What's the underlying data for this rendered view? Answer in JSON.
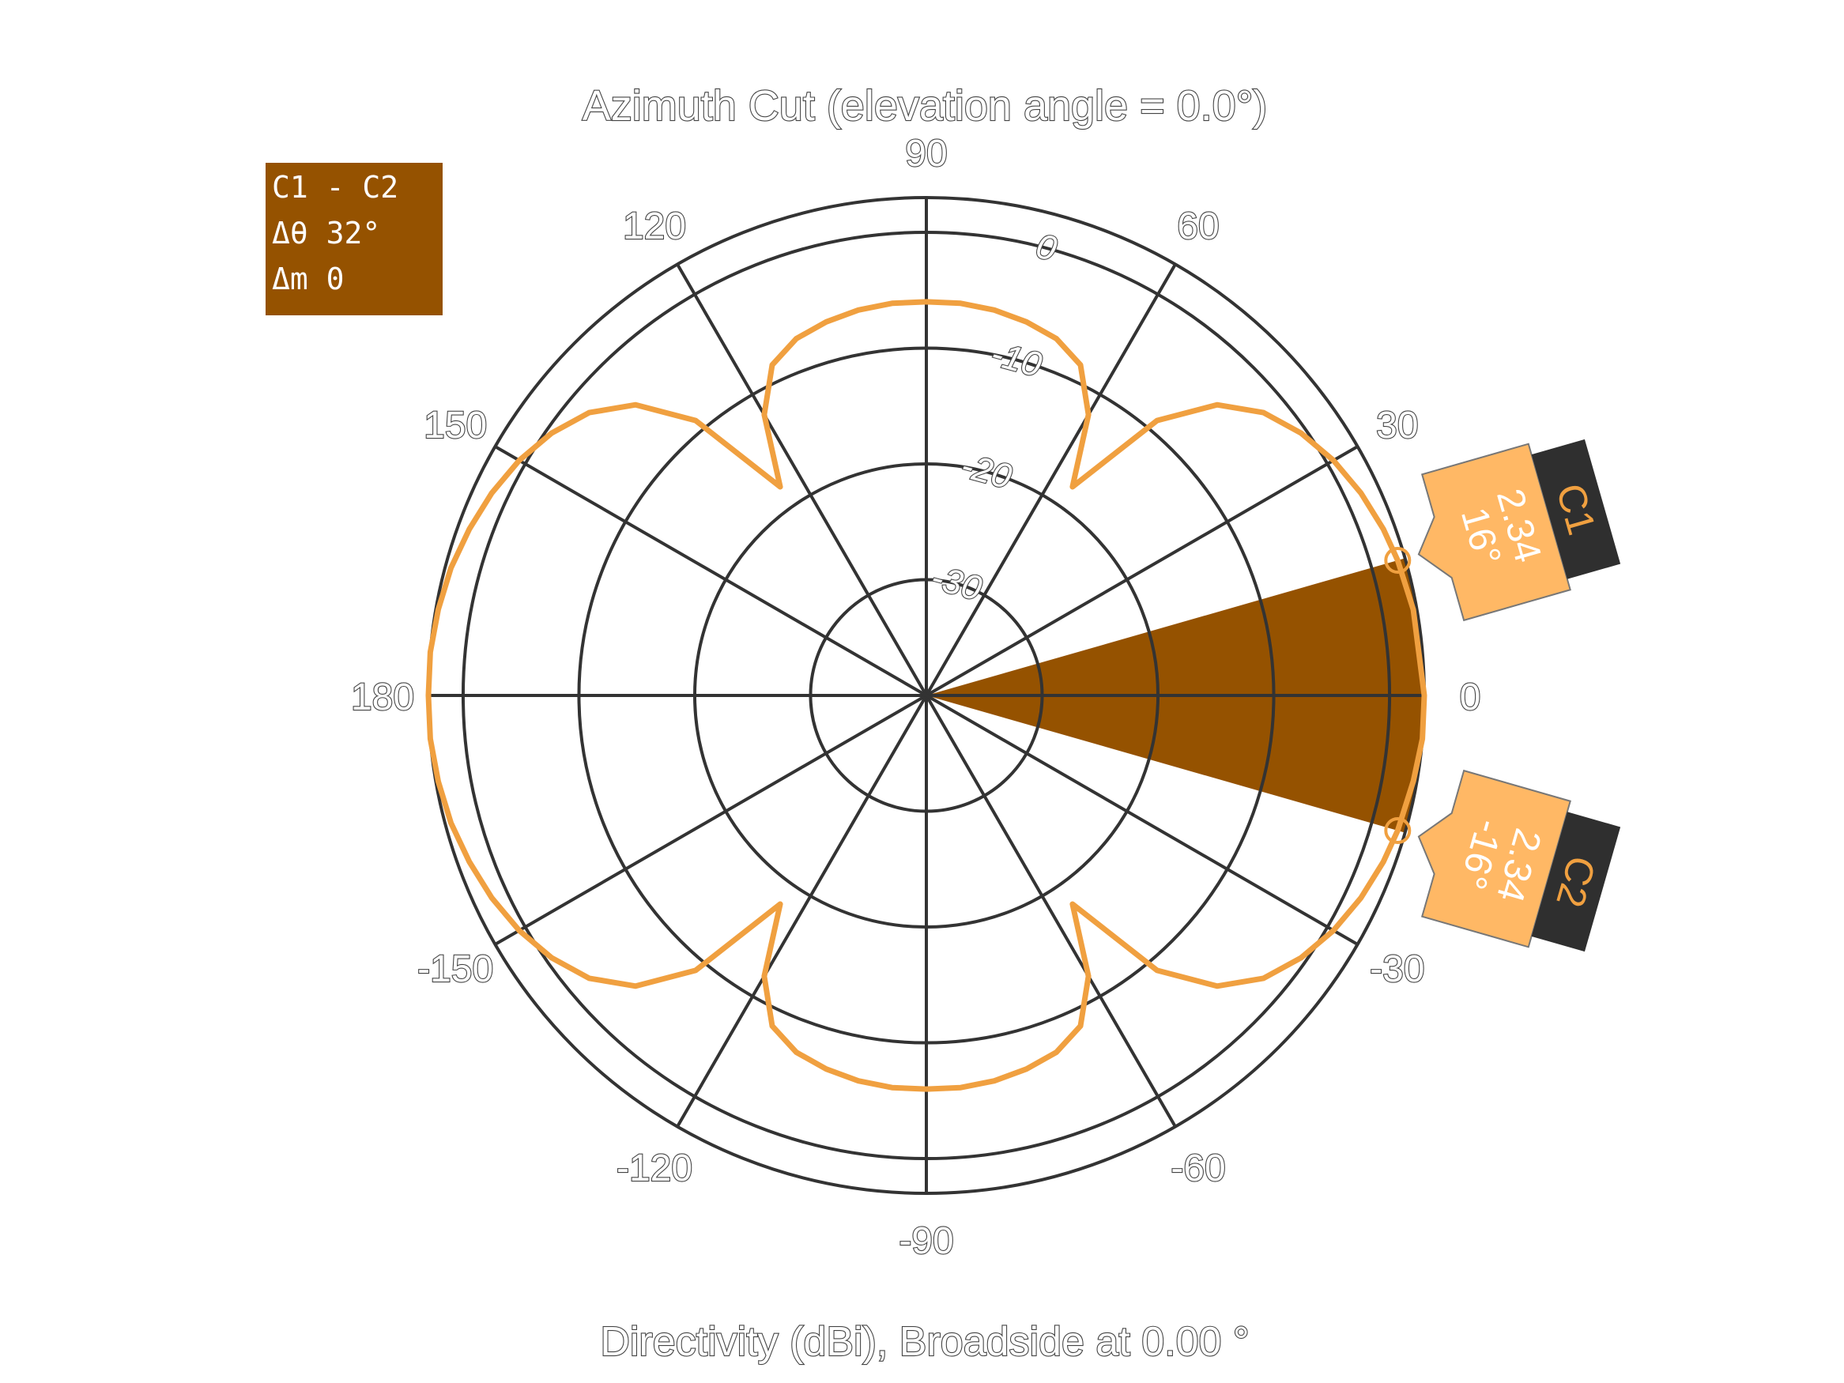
{
  "chart_data": {
    "type": "polar-line",
    "title": "Azimuth Cut (elevation angle = 0.0°)",
    "xlabel": "Directivity (dBi), Broadside at 0.00 °",
    "angle_ticks": [
      "90",
      "60",
      "30",
      "0",
      "-30",
      "-60",
      "-90",
      "-120",
      "-150",
      "180",
      "150",
      "120"
    ],
    "angle_tick_values": [
      90,
      60,
      30,
      0,
      -30,
      -60,
      -90,
      -120,
      -150,
      180,
      150,
      120
    ],
    "radial_ticks": [
      "0",
      "-10",
      "-20",
      "-30"
    ],
    "radial_tick_values": [
      0,
      -10,
      -20,
      -30
    ],
    "rlim": [
      -40,
      3
    ],
    "series": [
      {
        "color": "#f0a040",
        "angles_deg": [
          0,
          10,
          16,
          20,
          25,
          30,
          35,
          40,
          45,
          50,
          55,
          60,
          65,
          70,
          75,
          80,
          85,
          90,
          95,
          100,
          105,
          110,
          115,
          120,
          125,
          130,
          135,
          140,
          145,
          150,
          155,
          160,
          165,
          170,
          175,
          180,
          185,
          190,
          195,
          200,
          205,
          210,
          215,
          220,
          225,
          230,
          235,
          240,
          245,
          250,
          255,
          260,
          265,
          270,
          275,
          280,
          285,
          290,
          295,
          300,
          305,
          310,
          315,
          320,
          325,
          330,
          335,
          340,
          344,
          350,
          355,
          360
        ],
        "values_dbi": [
          3.0,
          2.7,
          2.34,
          2.0,
          1.4,
          0.6,
          -0.5,
          -2.0,
          -4.5,
          -9.0,
          -18.0,
          -12.0,
          -8.5,
          -7.2,
          -6.6,
          -6.2,
          -6.0,
          -6.0,
          -6.0,
          -6.2,
          -6.6,
          -7.2,
          -8.5,
          -12.0,
          -18.0,
          -9.0,
          -4.5,
          -2.0,
          -0.5,
          0.6,
          1.4,
          2.0,
          2.5,
          2.8,
          3.0,
          3.0,
          3.0,
          2.8,
          2.5,
          2.0,
          1.4,
          0.6,
          -0.5,
          -2.0,
          -4.5,
          -9.0,
          -18.0,
          -12.0,
          -8.5,
          -7.2,
          -6.6,
          -6.2,
          -6.0,
          -6.0,
          -6.0,
          -6.2,
          -6.6,
          -7.2,
          -8.5,
          -12.0,
          -18.0,
          -9.0,
          -4.5,
          -2.0,
          -0.5,
          0.6,
          1.4,
          2.0,
          2.34,
          2.7,
          3.0,
          3.0
        ]
      }
    ],
    "cursors": [
      {
        "label": "C1",
        "angle_text": "16°",
        "value_text": "2.34",
        "angle_deg": 16,
        "value": 2.34
      },
      {
        "label": "C2",
        "angle_text": "-16°",
        "value_text": "2.34",
        "angle_deg": -16,
        "value": 2.34
      }
    ],
    "span": {
      "from_deg": -16,
      "to_deg": 16,
      "color": "#955200"
    },
    "delta_box": {
      "line1": "C1 - C2",
      "line2": "Δθ 32°",
      "line3": "Δm 0"
    },
    "colors": {
      "pattern": "#f0a040",
      "span_fill": "#955200",
      "cursor_tag": "#ffb865",
      "cursor_label_bg": "#2f2f2f",
      "grid": "#333333"
    }
  }
}
